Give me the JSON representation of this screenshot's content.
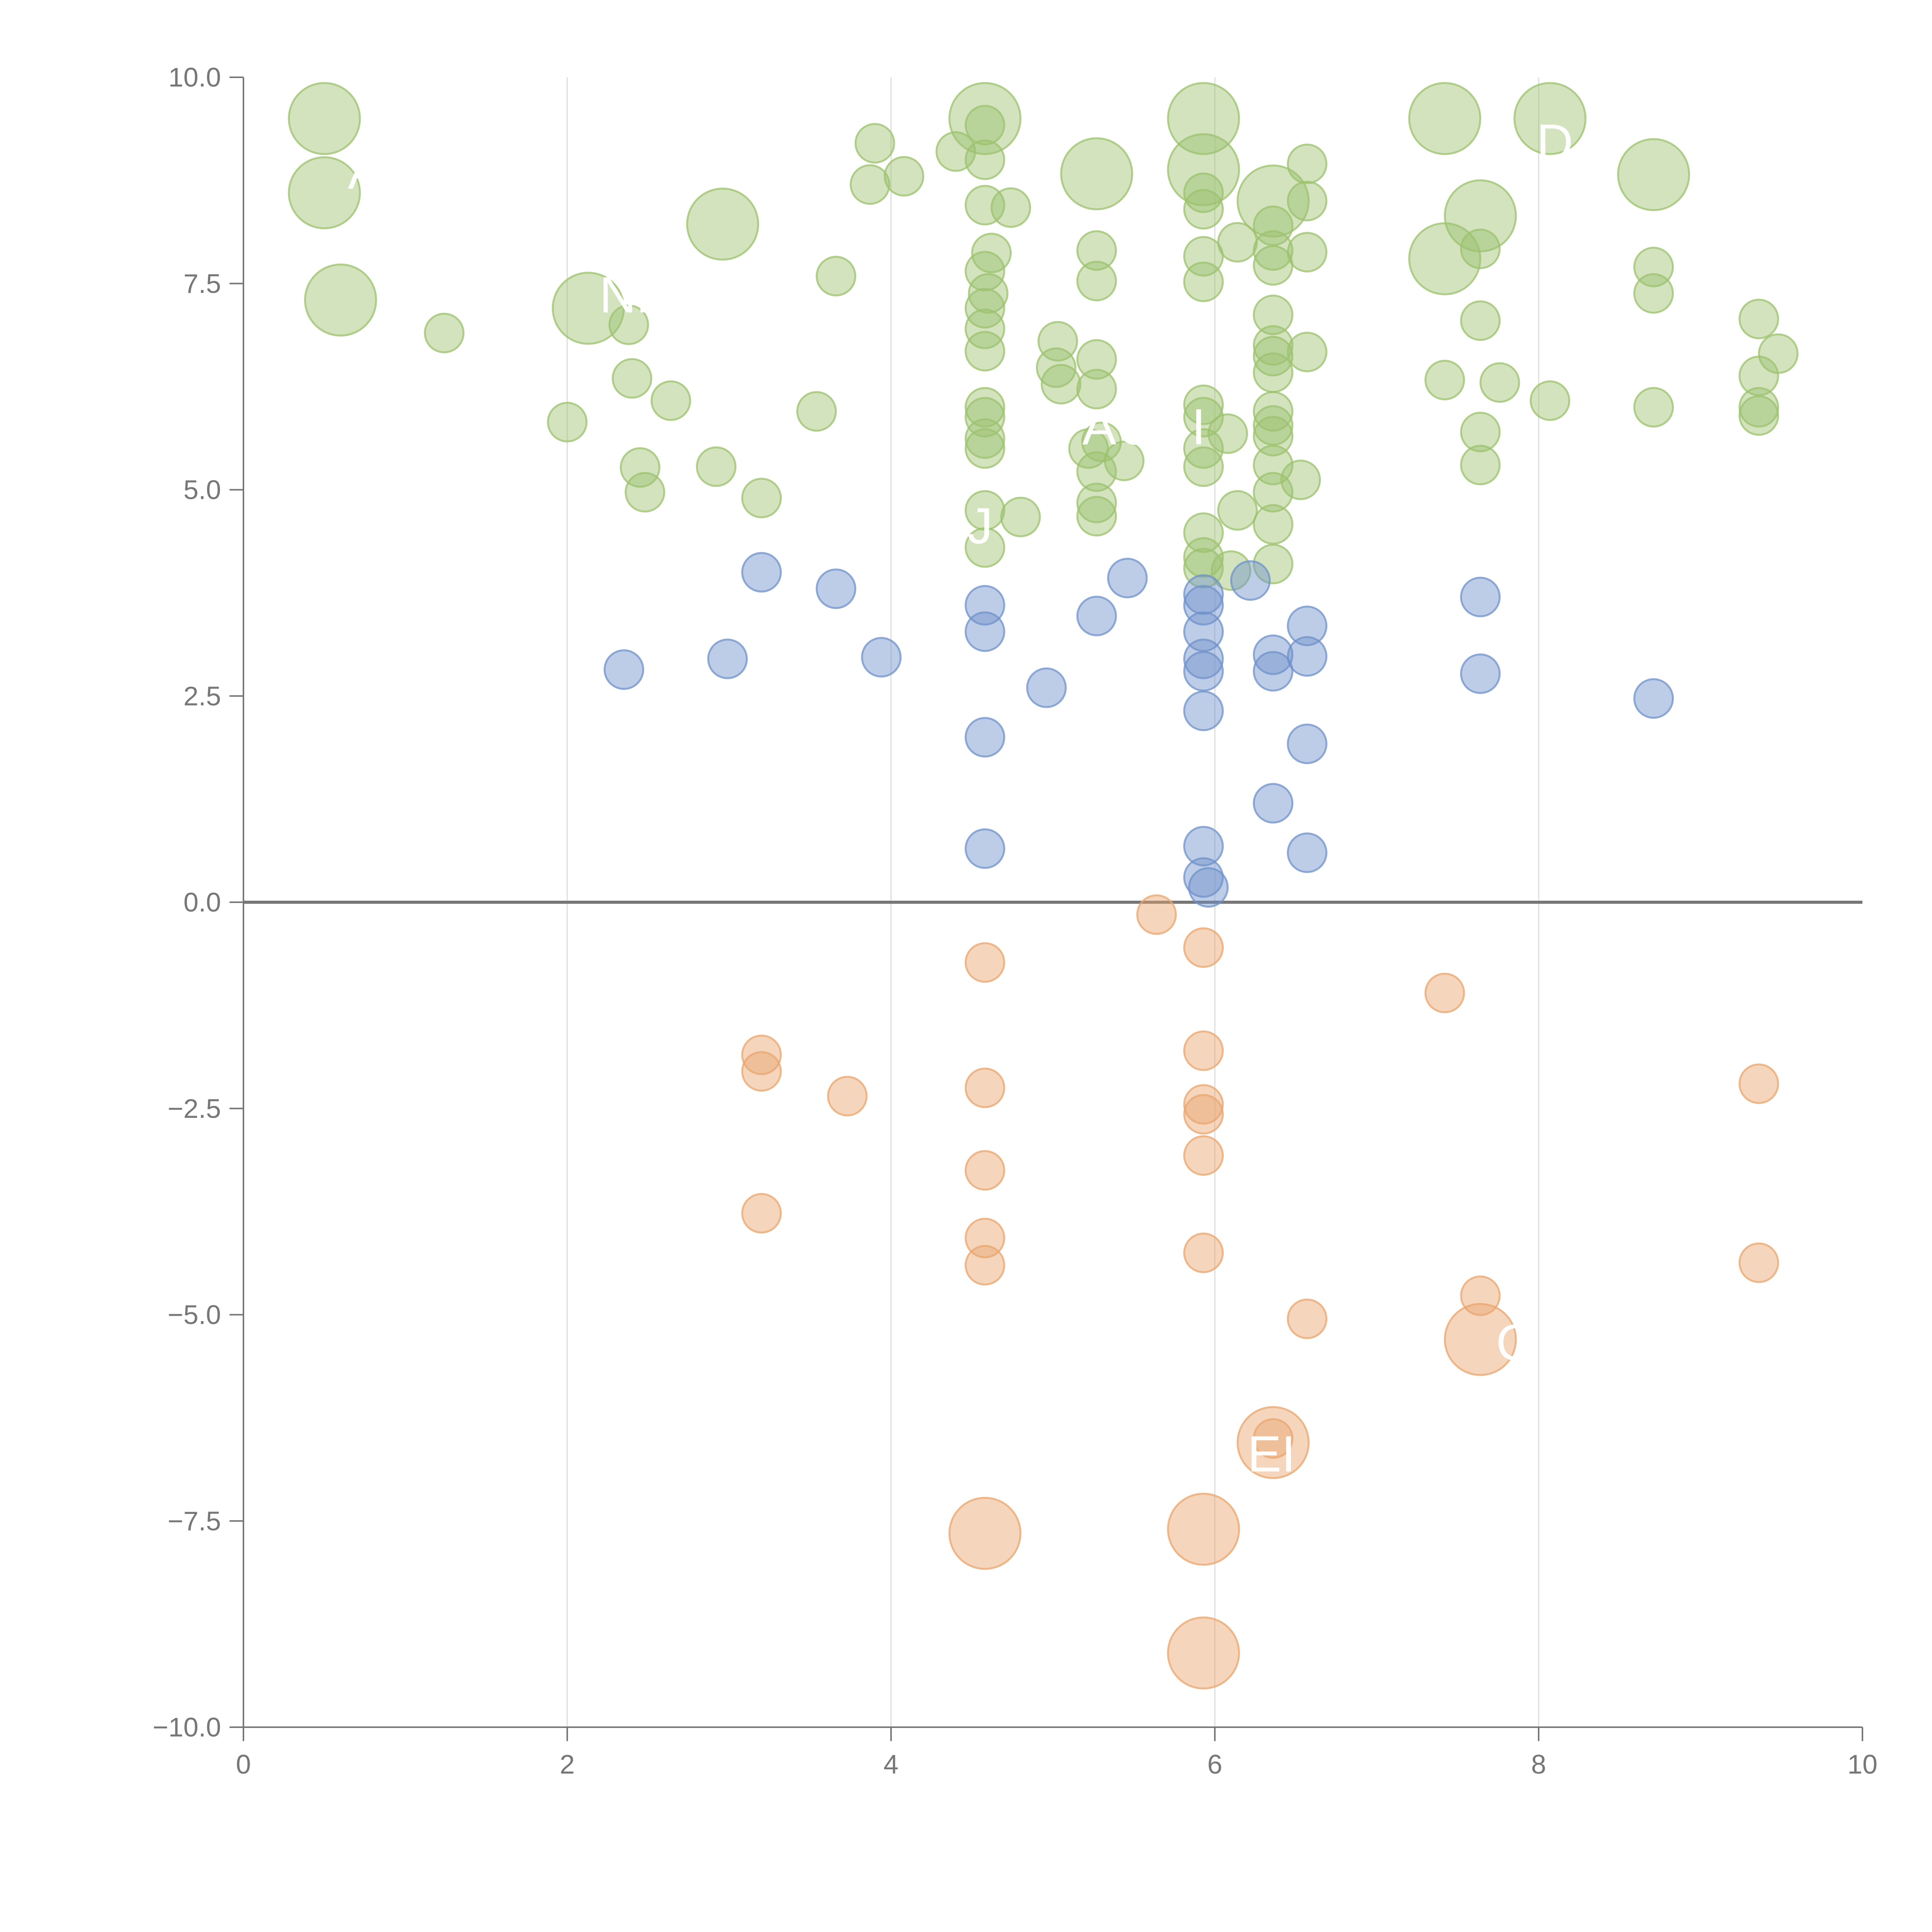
{
  "chart_data": {
    "type": "scatter",
    "title": "",
    "xlabel": "",
    "ylabel": "",
    "xlim": [
      0,
      10
    ],
    "ylim": [
      -10,
      10
    ],
    "x_ticks": [
      0,
      2,
      4,
      6,
      8,
      10
    ],
    "x_tick_labels": [
      "0",
      "2",
      "4",
      "6",
      "8",
      "10"
    ],
    "y_ticks": [
      -10,
      -7.5,
      -5,
      -2.5,
      0,
      2.5,
      5,
      7.5,
      10
    ],
    "y_tick_labels": [
      "−10.0",
      "−7.5",
      "−5.0",
      "−2.5",
      "0.0",
      "2.5",
      "5.0",
      "7.5",
      "10.0"
    ],
    "grid": "vertical",
    "zero_line": true,
    "legend": "none",
    "colors": {
      "green": "#9cc16e",
      "blue": "#6f91c9",
      "orange": "#e8a56d",
      "axis": "#777777",
      "grid": "#dddddd"
    },
    "series": [
      {
        "color": "green",
        "points": [
          {
            "x": 0.5,
            "y": 9.5,
            "size": "large"
          },
          {
            "x": 0.5,
            "y": 8.6,
            "size": "large"
          },
          {
            "x": 0.6,
            "y": 7.3,
            "size": "large"
          },
          {
            "x": 1.24,
            "y": 6.9
          },
          {
            "x": 2.13,
            "y": 7.2,
            "size": "large"
          },
          {
            "x": 2.38,
            "y": 7.0
          },
          {
            "x": 2.4,
            "y": 6.35
          },
          {
            "x": 2.0,
            "y": 5.82
          },
          {
            "x": 2.64,
            "y": 6.08
          },
          {
            "x": 2.45,
            "y": 5.27
          },
          {
            "x": 2.48,
            "y": 4.97
          },
          {
            "x": 2.92,
            "y": 5.28
          },
          {
            "x": 3.2,
            "y": 4.9
          },
          {
            "x": 2.96,
            "y": 8.22,
            "size": "large"
          },
          {
            "x": 3.54,
            "y": 5.95
          },
          {
            "x": 3.66,
            "y": 7.59
          },
          {
            "x": 3.87,
            "y": 8.7
          },
          {
            "x": 3.9,
            "y": 9.2
          },
          {
            "x": 4.08,
            "y": 8.8
          },
          {
            "x": 4.4,
            "y": 9.1
          },
          {
            "x": 4.58,
            "y": 9.5,
            "size": "large"
          },
          {
            "x": 4.58,
            "y": 9.42
          },
          {
            "x": 4.58,
            "y": 9.0
          },
          {
            "x": 4.58,
            "y": 8.45
          },
          {
            "x": 4.74,
            "y": 8.42
          },
          {
            "x": 4.62,
            "y": 7.87
          },
          {
            "x": 4.58,
            "y": 7.65
          },
          {
            "x": 4.6,
            "y": 7.38
          },
          {
            "x": 4.58,
            "y": 7.2
          },
          {
            "x": 4.58,
            "y": 6.95
          },
          {
            "x": 4.58,
            "y": 6.68
          },
          {
            "x": 4.58,
            "y": 6.0
          },
          {
            "x": 4.58,
            "y": 5.88
          },
          {
            "x": 4.58,
            "y": 5.62
          },
          {
            "x": 4.58,
            "y": 5.5
          },
          {
            "x": 4.58,
            "y": 4.75
          },
          {
            "x": 4.8,
            "y": 4.67
          },
          {
            "x": 4.58,
            "y": 4.3
          },
          {
            "x": 5.03,
            "y": 6.8
          },
          {
            "x": 5.02,
            "y": 6.48
          },
          {
            "x": 5.05,
            "y": 6.28
          },
          {
            "x": 5.27,
            "y": 8.83,
            "size": "large"
          },
          {
            "x": 5.27,
            "y": 7.9
          },
          {
            "x": 5.27,
            "y": 7.53
          },
          {
            "x": 5.27,
            "y": 6.58
          },
          {
            "x": 5.27,
            "y": 6.22
          },
          {
            "x": 5.22,
            "y": 5.5
          },
          {
            "x": 5.3,
            "y": 5.58
          },
          {
            "x": 5.27,
            "y": 5.22
          },
          {
            "x": 5.44,
            "y": 5.35
          },
          {
            "x": 5.27,
            "y": 4.84
          },
          {
            "x": 5.27,
            "y": 4.68
          },
          {
            "x": 5.93,
            "y": 9.5,
            "size": "large"
          },
          {
            "x": 5.93,
            "y": 8.88,
            "size": "large"
          },
          {
            "x": 5.93,
            "y": 8.6
          },
          {
            "x": 5.93,
            "y": 8.4
          },
          {
            "x": 5.93,
            "y": 7.83
          },
          {
            "x": 5.93,
            "y": 7.52
          },
          {
            "x": 5.93,
            "y": 6.03
          },
          {
            "x": 5.93,
            "y": 5.88
          },
          {
            "x": 5.93,
            "y": 5.5
          },
          {
            "x": 5.93,
            "y": 5.28
          },
          {
            "x": 6.08,
            "y": 5.68
          },
          {
            "x": 5.93,
            "y": 4.48
          },
          {
            "x": 5.93,
            "y": 4.18
          },
          {
            "x": 5.93,
            "y": 4.05
          },
          {
            "x": 6.1,
            "y": 4.02
          },
          {
            "x": 6.14,
            "y": 4.75
          },
          {
            "x": 6.14,
            "y": 8.0
          },
          {
            "x": 6.36,
            "y": 8.5,
            "size": "large"
          },
          {
            "x": 6.36,
            "y": 8.2
          },
          {
            "x": 6.36,
            "y": 7.9
          },
          {
            "x": 6.36,
            "y": 7.72
          },
          {
            "x": 6.36,
            "y": 7.12
          },
          {
            "x": 6.36,
            "y": 6.75
          },
          {
            "x": 6.36,
            "y": 6.62
          },
          {
            "x": 6.36,
            "y": 6.42
          },
          {
            "x": 6.36,
            "y": 5.95
          },
          {
            "x": 6.36,
            "y": 5.78
          },
          {
            "x": 6.36,
            "y": 5.65
          },
          {
            "x": 6.36,
            "y": 5.3
          },
          {
            "x": 6.36,
            "y": 4.97
          },
          {
            "x": 6.36,
            "y": 4.58
          },
          {
            "x": 6.36,
            "y": 4.1
          },
          {
            "x": 6.53,
            "y": 5.12
          },
          {
            "x": 6.57,
            "y": 8.95
          },
          {
            "x": 6.57,
            "y": 8.5
          },
          {
            "x": 6.57,
            "y": 7.88
          },
          {
            "x": 6.57,
            "y": 6.67
          },
          {
            "x": 7.42,
            "y": 9.5,
            "size": "large"
          },
          {
            "x": 7.42,
            "y": 7.8,
            "size": "large"
          },
          {
            "x": 7.42,
            "y": 6.33
          },
          {
            "x": 7.64,
            "y": 8.32,
            "size": "large"
          },
          {
            "x": 7.64,
            "y": 7.92
          },
          {
            "x": 7.64,
            "y": 7.05
          },
          {
            "x": 7.64,
            "y": 5.7
          },
          {
            "x": 7.64,
            "y": 5.3
          },
          {
            "x": 7.76,
            "y": 6.3
          },
          {
            "x": 8.07,
            "y": 9.5,
            "size": "large"
          },
          {
            "x": 8.07,
            "y": 6.08
          },
          {
            "x": 8.71,
            "y": 8.82,
            "size": "large"
          },
          {
            "x": 8.71,
            "y": 7.7
          },
          {
            "x": 8.71,
            "y": 7.38
          },
          {
            "x": 8.71,
            "y": 6.0
          },
          {
            "x": 9.36,
            "y": 7.07
          },
          {
            "x": 9.36,
            "y": 6.38
          },
          {
            "x": 9.36,
            "y": 6.0
          },
          {
            "x": 9.36,
            "y": 5.9
          },
          {
            "x": 9.48,
            "y": 6.65
          }
        ]
      },
      {
        "color": "blue",
        "points": [
          {
            "x": 2.35,
            "y": 2.82
          },
          {
            "x": 2.99,
            "y": 2.95
          },
          {
            "x": 3.2,
            "y": 4.0
          },
          {
            "x": 3.66,
            "y": 3.8
          },
          {
            "x": 3.94,
            "y": 2.97
          },
          {
            "x": 4.58,
            "y": 3.6
          },
          {
            "x": 4.58,
            "y": 3.28
          },
          {
            "x": 4.58,
            "y": 2.0
          },
          {
            "x": 4.58,
            "y": 0.65
          },
          {
            "x": 4.96,
            "y": 2.6
          },
          {
            "x": 5.27,
            "y": 3.47
          },
          {
            "x": 5.46,
            "y": 3.93
          },
          {
            "x": 5.93,
            "y": 3.73
          },
          {
            "x": 5.93,
            "y": 3.6
          },
          {
            "x": 5.93,
            "y": 3.28
          },
          {
            "x": 5.93,
            "y": 2.95
          },
          {
            "x": 5.93,
            "y": 2.8
          },
          {
            "x": 5.93,
            "y": 2.32
          },
          {
            "x": 5.93,
            "y": 0.68
          },
          {
            "x": 5.93,
            "y": 0.3
          },
          {
            "x": 5.96,
            "y": 0.18
          },
          {
            "x": 6.22,
            "y": 3.9
          },
          {
            "x": 6.36,
            "y": 3.0
          },
          {
            "x": 6.36,
            "y": 2.8
          },
          {
            "x": 6.36,
            "y": 1.2
          },
          {
            "x": 6.57,
            "y": 3.35
          },
          {
            "x": 6.57,
            "y": 2.98
          },
          {
            "x": 6.57,
            "y": 1.92
          },
          {
            "x": 6.57,
            "y": 0.6
          },
          {
            "x": 7.64,
            "y": 3.7
          },
          {
            "x": 7.64,
            "y": 2.77
          },
          {
            "x": 8.71,
            "y": 2.47
          }
        ]
      },
      {
        "color": "orange",
        "points": [
          {
            "x": 3.2,
            "y": -1.85
          },
          {
            "x": 3.2,
            "y": -2.05
          },
          {
            "x": 3.2,
            "y": -3.77
          },
          {
            "x": 3.73,
            "y": -2.35
          },
          {
            "x": 4.58,
            "y": -0.73
          },
          {
            "x": 4.58,
            "y": -2.25
          },
          {
            "x": 4.58,
            "y": -3.25
          },
          {
            "x": 4.58,
            "y": -4.07
          },
          {
            "x": 4.58,
            "y": -4.4
          },
          {
            "x": 4.58,
            "y": -7.65,
            "size": "large"
          },
          {
            "x": 5.64,
            "y": -0.15
          },
          {
            "x": 5.93,
            "y": -0.55
          },
          {
            "x": 5.93,
            "y": -1.8
          },
          {
            "x": 5.93,
            "y": -2.45
          },
          {
            "x": 5.93,
            "y": -2.57
          },
          {
            "x": 5.93,
            "y": -3.07
          },
          {
            "x": 5.93,
            "y": -4.25
          },
          {
            "x": 5.93,
            "y": -7.6,
            "size": "large"
          },
          {
            "x": 5.93,
            "y": -9.1,
            "size": "large"
          },
          {
            "x": 6.36,
            "y": -6.55,
            "size": "large"
          },
          {
            "x": 6.36,
            "y": -6.5
          },
          {
            "x": 6.57,
            "y": -5.05
          },
          {
            "x": 7.42,
            "y": -1.1
          },
          {
            "x": 7.64,
            "y": -4.77
          },
          {
            "x": 7.64,
            "y": -5.3,
            "size": "large"
          },
          {
            "x": 9.36,
            "y": -2.2
          },
          {
            "x": 9.36,
            "y": -4.37
          }
        ]
      }
    ],
    "annotations": [
      {
        "text": "A",
        "x": 0.75,
        "y": 8.65
      },
      {
        "text": "NL",
        "x": 2.4,
        "y": 7.15
      },
      {
        "text": "J",
        "x": 4.55,
        "y": 4.35
      },
      {
        "text": "AC",
        "x": 5.4,
        "y": 5.55
      },
      {
        "text": "I",
        "x": 5.9,
        "y": 5.55
      },
      {
        "text": "D",
        "x": 8.1,
        "y": 9.0
      },
      {
        "text": "C",
        "x": 7.85,
        "y": -5.55
      },
      {
        "text": "EI",
        "x": 6.35,
        "y": -6.9
      }
    ]
  }
}
